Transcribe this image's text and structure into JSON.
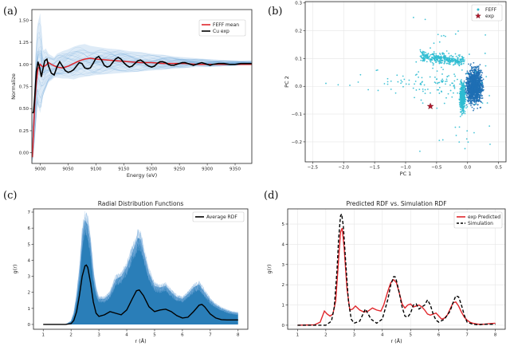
{
  "panel_labels": [
    "(a)",
    "(b)",
    "(c)",
    "(d)"
  ],
  "chart_data": [
    {
      "panel": "(a)",
      "type": "line",
      "title": "",
      "xlabel": "Energy (eV)",
      "ylabel": "Normalize",
      "xlim": [
        8985,
        9380
      ],
      "ylim": [
        -0.12,
        1.62
      ],
      "xticks": [
        9000,
        9050,
        9100,
        9150,
        9200,
        9250,
        9300,
        9350
      ],
      "yticks": [
        0.0,
        0.25,
        0.5,
        0.75,
        1.0,
        1.25,
        1.5
      ],
      "ytick_labels": [
        "0.00",
        "0.25",
        "0.50",
        "0.75",
        "1.00",
        "1.25",
        "1.50"
      ],
      "legend_position": "top-right",
      "colors": {
        "band": "#5b9bd5",
        "mean": "#e0262b",
        "exp": "#000000"
      },
      "band": {
        "x": [
          8986,
          8989,
          8992,
          8995,
          9000,
          9005,
          9010,
          9015,
          9020,
          9025,
          9030,
          9040,
          9050,
          9060,
          9070,
          9080,
          9090,
          9100,
          9120,
          9140,
          9160,
          9180,
          9200,
          9220,
          9240,
          9260,
          9280,
          9300,
          9330,
          9360,
          9380
        ],
        "upper": [
          0.3,
          0.6,
          1.15,
          1.45,
          1.58,
          1.15,
          1.18,
          1.12,
          1.1,
          1.08,
          1.12,
          1.15,
          1.17,
          1.2,
          1.22,
          1.23,
          1.21,
          1.2,
          1.18,
          1.17,
          1.15,
          1.14,
          1.12,
          1.11,
          1.09,
          1.08,
          1.07,
          1.06,
          1.05,
          1.04,
          1.04
        ],
        "lower": [
          -0.12,
          0.05,
          0.3,
          0.55,
          0.45,
          0.65,
          0.72,
          0.8,
          0.82,
          0.85,
          0.85,
          0.84,
          0.84,
          0.83,
          0.85,
          0.86,
          0.87,
          0.88,
          0.89,
          0.9,
          0.91,
          0.92,
          0.93,
          0.94,
          0.95,
          0.96,
          0.97,
          0.97,
          0.98,
          0.99,
          0.99
        ]
      },
      "series": [
        {
          "name": "FEFF mean",
          "x": [
            8986,
            8988,
            8990,
            8993,
            8996,
            9000,
            9005,
            9010,
            9015,
            9020,
            9030,
            9040,
            9050,
            9060,
            9070,
            9080,
            9090,
            9100,
            9120,
            9140,
            9160,
            9180,
            9200,
            9220,
            9240,
            9260,
            9280,
            9300,
            9330,
            9360,
            9380
          ],
          "y": [
            -0.05,
            0.25,
            0.55,
            0.8,
            0.95,
            1.0,
            0.97,
            0.99,
            1.02,
            1.0,
            0.97,
            0.96,
            0.98,
            1.01,
            1.04,
            1.06,
            1.07,
            1.06,
            1.05,
            1.04,
            1.03,
            1.02,
            1.02,
            1.01,
            1.01,
            1.01,
            1.0,
            1.0,
            1.0,
            1.0,
            1.0
          ]
        },
        {
          "name": "Cu exp",
          "x": [
            8986,
            8988,
            8990,
            8993,
            8996,
            8999,
            9002,
            9005,
            9008,
            9012,
            9015,
            9020,
            9025,
            9030,
            9035,
            9040,
            9045,
            9050,
            9055,
            9060,
            9065,
            9070,
            9075,
            9080,
            9085,
            9090,
            9095,
            9100,
            9105,
            9110,
            9115,
            9120,
            9125,
            9130,
            9135,
            9140,
            9145,
            9150,
            9155,
            9160,
            9165,
            9170,
            9175,
            9180,
            9185,
            9190,
            9195,
            9200,
            9205,
            9210,
            9215,
            9220,
            9225,
            9230,
            9235,
            9240,
            9245,
            9250,
            9255,
            9260,
            9265,
            9270,
            9275,
            9280,
            9285,
            9290,
            9295,
            9300,
            9305,
            9310,
            9320,
            9330,
            9340,
            9350,
            9360,
            9370,
            9380
          ],
          "y": [
            0.45,
            0.46,
            0.62,
            0.92,
            1.03,
            0.96,
            0.86,
            0.95,
            1.04,
            1.06,
            0.98,
            0.9,
            0.88,
            0.97,
            1.03,
            0.98,
            0.93,
            0.91,
            0.92,
            0.94,
            0.98,
            1.02,
            1.01,
            0.96,
            0.95,
            0.96,
            1.01,
            1.07,
            1.09,
            1.05,
            0.99,
            0.97,
            0.98,
            1.02,
            1.06,
            1.08,
            1.06,
            1.02,
            0.99,
            0.97,
            0.98,
            1.01,
            1.04,
            1.05,
            1.03,
            1.0,
            0.98,
            0.97,
            0.98,
            1.01,
            1.03,
            1.03,
            1.02,
            1.0,
            0.99,
            0.99,
            1.0,
            1.01,
            1.02,
            1.02,
            1.01,
            1.0,
            0.99,
            1.0,
            1.01,
            1.02,
            1.01,
            1.0,
            0.99,
            1.0,
            1.01,
            1.01,
            1.0,
            1.0,
            1.01,
            1.01,
            1.01
          ]
        }
      ]
    },
    {
      "panel": "(b)",
      "type": "scatter",
      "title": "",
      "xlabel": "PC 1",
      "ylabel": "PC 2",
      "xlim": [
        -2.62,
        0.62
      ],
      "ylim": [
        -0.272,
        0.305
      ],
      "xticks": [
        -2.5,
        -2.0,
        -1.5,
        -1.0,
        -0.5,
        0.0,
        0.5
      ],
      "xtick_labels": [
        "−2.5",
        "−2.0",
        "−1.5",
        "−1.0",
        "−0.5",
        "0.0",
        "0.5"
      ],
      "yticks": [
        -0.2,
        -0.1,
        0.0,
        0.1,
        0.2,
        0.3
      ],
      "ytick_labels": [
        "−0.2",
        "−0.1",
        "0.0",
        "0.1",
        "0.2",
        "0.3"
      ],
      "legend_position": "top-right",
      "colors": {
        "light": "#2fbcd1",
        "dark": "#1f6fb4",
        "exp": "#b0182c"
      },
      "series": [
        {
          "name": "FEFF",
          "marker": "dot",
          "points": "dense cloud of points, mostly PC1 -0.6..0.5, PC2 -0.22..0.22, with a sparse tail to PC1 -2.5"
        },
        {
          "name": "exp",
          "marker": "star",
          "x": [
            -0.6
          ],
          "y": [
            -0.072
          ]
        }
      ]
    },
    {
      "panel": "(c)",
      "type": "line",
      "title": "Radial Distribution Functions",
      "xlabel": "r (Å)",
      "ylabel": "g(r)",
      "xlim": [
        0.65,
        8.35
      ],
      "ylim": [
        -0.3,
        7.2
      ],
      "xticks": [
        1,
        2,
        3,
        4,
        5,
        6,
        7,
        8
      ],
      "yticks": [
        0,
        1,
        2,
        3,
        4,
        5,
        6,
        7
      ],
      "legend_position": "top-right",
      "colors": {
        "band": "#1f77b4",
        "average": "#000000"
      },
      "band": {
        "x": [
          1.0,
          1.8,
          2.0,
          2.1,
          2.2,
          2.3,
          2.4,
          2.5,
          2.6,
          2.7,
          2.8,
          2.9,
          3.0,
          3.2,
          3.4,
          3.6,
          3.8,
          4.0,
          4.2,
          4.4,
          4.5,
          4.6,
          4.8,
          5.0,
          5.2,
          5.4,
          5.6,
          5.8,
          6.0,
          6.2,
          6.4,
          6.6,
          6.8,
          7.0,
          7.2,
          7.4,
          7.6,
          7.8,
          8.0
        ],
        "upper": [
          0.0,
          0.0,
          0.2,
          0.7,
          1.8,
          3.2,
          5.5,
          6.5,
          6.2,
          5.0,
          3.2,
          2.1,
          1.6,
          1.6,
          1.9,
          2.8,
          3.0,
          3.6,
          4.5,
          5.4,
          5.3,
          4.6,
          3.2,
          2.4,
          2.3,
          2.4,
          2.0,
          1.7,
          1.6,
          1.9,
          2.3,
          2.5,
          2.0,
          1.5,
          1.2,
          1.0,
          0.85,
          0.75,
          0.7
        ],
        "lower": [
          0.0,
          0.0,
          0.0,
          0.0,
          0.0,
          0.0,
          0.0,
          0.0,
          0.0,
          0.0,
          0.0,
          0.0,
          0.0,
          0.0,
          0.0,
          0.0,
          0.0,
          0.0,
          0.0,
          0.0,
          0.0,
          0.0,
          0.0,
          0.0,
          0.0,
          0.0,
          0.0,
          0.0,
          0.0,
          0.0,
          0.0,
          0.0,
          0.0,
          0.0,
          0.0,
          0.0,
          0.0,
          0.0,
          0.0
        ]
      },
      "series": [
        {
          "name": "Average RDF",
          "x": [
            1.0,
            1.8,
            2.0,
            2.1,
            2.2,
            2.3,
            2.4,
            2.5,
            2.55,
            2.6,
            2.7,
            2.8,
            2.9,
            3.0,
            3.2,
            3.4,
            3.6,
            3.8,
            4.0,
            4.2,
            4.35,
            4.45,
            4.6,
            4.8,
            5.0,
            5.2,
            5.4,
            5.6,
            5.8,
            6.0,
            6.2,
            6.4,
            6.6,
            6.7,
            6.8,
            7.0,
            7.2,
            7.4,
            7.6,
            7.8,
            8.0
          ],
          "y": [
            0.0,
            0.0,
            0.05,
            0.25,
            0.8,
            1.8,
            3.0,
            3.65,
            3.7,
            3.55,
            2.6,
            1.4,
            0.7,
            0.5,
            0.6,
            0.8,
            0.7,
            0.6,
            0.9,
            1.6,
            2.1,
            2.15,
            1.8,
            1.1,
            0.8,
            0.9,
            0.95,
            0.8,
            0.55,
            0.4,
            0.45,
            0.8,
            1.2,
            1.25,
            1.1,
            0.65,
            0.4,
            0.3,
            0.28,
            0.28,
            0.28
          ]
        }
      ]
    },
    {
      "panel": "(d)",
      "type": "line",
      "title": "Predicted RDF vs. Simulation RDF",
      "xlabel": "r (Å)",
      "ylabel": "g(r)",
      "xlim": [
        0.65,
        8.35
      ],
      "ylim": [
        -0.2,
        5.75
      ],
      "xticks": [
        1,
        2,
        3,
        4,
        5,
        6,
        7,
        8
      ],
      "yticks": [
        0,
        1,
        2,
        3,
        4,
        5
      ],
      "legend_position": "top-right",
      "colors": {
        "predicted": "#e0262b",
        "simulation": "#000000"
      },
      "series": [
        {
          "name": "exp Predicted",
          "x": [
            1.0,
            1.6,
            1.8,
            1.95,
            2.05,
            2.15,
            2.25,
            2.35,
            2.45,
            2.52,
            2.58,
            2.65,
            2.75,
            2.85,
            2.95,
            3.05,
            3.2,
            3.35,
            3.5,
            3.65,
            3.8,
            3.95,
            4.05,
            4.2,
            4.3,
            4.4,
            4.5,
            4.6,
            4.7,
            4.8,
            4.9,
            5.0,
            5.1,
            5.2,
            5.3,
            5.4,
            5.5,
            5.6,
            5.7,
            5.8,
            5.9,
            6.0,
            6.1,
            6.2,
            6.3,
            6.4,
            6.5,
            6.6,
            6.7,
            6.8,
            6.9,
            7.0,
            7.1,
            7.2,
            7.4,
            7.6,
            7.8,
            8.0
          ],
          "y": [
            0.0,
            0.02,
            0.15,
            0.7,
            0.55,
            0.45,
            0.55,
            1.2,
            3.2,
            4.6,
            4.8,
            3.8,
            1.8,
            0.75,
            0.8,
            0.95,
            0.75,
            0.65,
            0.7,
            0.85,
            0.75,
            0.7,
            1.0,
            1.7,
            2.1,
            2.25,
            2.1,
            1.6,
            1.05,
            0.85,
            1.0,
            1.05,
            0.9,
            0.95,
            1.0,
            0.9,
            0.75,
            0.55,
            0.5,
            0.55,
            0.6,
            0.45,
            0.3,
            0.35,
            0.5,
            0.8,
            1.1,
            1.15,
            0.95,
            0.65,
            0.4,
            0.25,
            0.15,
            0.1,
            0.05,
            0.05,
            0.08,
            0.1
          ]
        },
        {
          "name": "Simulation",
          "x": [
            1.0,
            2.0,
            2.2,
            2.3,
            2.4,
            2.45,
            2.52,
            2.56,
            2.62,
            2.7,
            2.8,
            2.9,
            3.0,
            3.2,
            3.4,
            3.6,
            3.8,
            4.0,
            4.2,
            4.3,
            4.4,
            4.45,
            4.5,
            4.6,
            4.7,
            4.8,
            4.9,
            5.0,
            5.1,
            5.2,
            5.3,
            5.4,
            5.5,
            5.6,
            5.7,
            5.8,
            5.9,
            6.0,
            6.2,
            6.4,
            6.5,
            6.6,
            6.7,
            6.8,
            6.9,
            7.0,
            7.2,
            7.4,
            7.6,
            7.8,
            8.0
          ],
          "y": [
            0.0,
            0.0,
            0.2,
            0.9,
            2.8,
            4.2,
            5.4,
            5.5,
            4.9,
            3.2,
            1.2,
            0.3,
            0.1,
            0.2,
            0.8,
            0.3,
            0.1,
            0.3,
            1.3,
            2.0,
            2.4,
            2.4,
            2.2,
            1.6,
            0.9,
            0.45,
            0.4,
            0.6,
            1.0,
            1.05,
            0.8,
            0.9,
            1.0,
            1.25,
            1.0,
            0.55,
            0.25,
            0.15,
            0.3,
            0.7,
            1.1,
            1.45,
            1.4,
            1.0,
            0.5,
            0.15,
            0.05,
            0.02,
            0.05,
            0.05,
            0.05
          ]
        }
      ]
    }
  ]
}
